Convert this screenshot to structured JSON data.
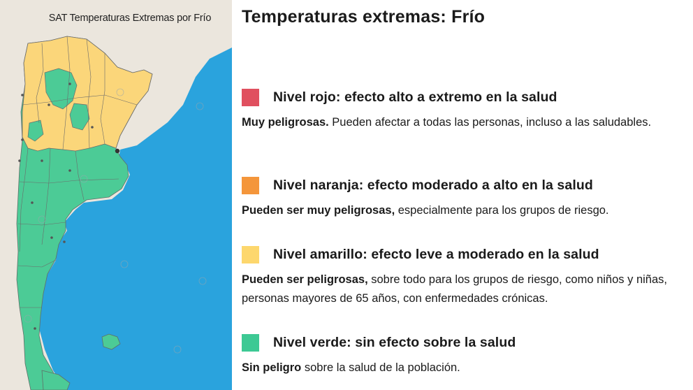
{
  "map": {
    "title": "SAT Temperaturas Extremas por Frío",
    "colors": {
      "sea": "#2aa3dd",
      "land": "#ebe6dd",
      "green": "#4ccb96",
      "yellow": "#fbd67a",
      "border": "#6b6b6b"
    },
    "watermark_icon": "smn-logo-icon"
  },
  "page": {
    "title": "Temperaturas extremas: Frío"
  },
  "levels": [
    {
      "key": "rojo",
      "color": "#e0505f",
      "title": "Nivel rojo: efecto alto a extremo en la salud",
      "bold": "Muy peligrosas.",
      "text": " Pueden afectar a todas las personas, incluso a las saludables."
    },
    {
      "key": "naranja",
      "color": "#f4963b",
      "title": "Nivel naranja: efecto moderado a alto en la salud",
      "bold": "Pueden ser muy peligrosas,",
      "text": " especialmente para los grupos de riesgo."
    },
    {
      "key": "amarillo",
      "color": "#fdd76d",
      "title": "Nivel amarillo: efecto leve a moderado en la salud",
      "bold": "Pueden ser peligrosas,",
      "text": " sobre todo para los grupos de riesgo, como niños y niñas, personas mayores de 65 años, con enfermedades crónicas."
    },
    {
      "key": "verde",
      "color": "#3dc994",
      "title": "Nivel verde: sin efecto sobre la salud",
      "bold": "Sin peligro",
      "text": " sobre la salud de la población."
    }
  ]
}
